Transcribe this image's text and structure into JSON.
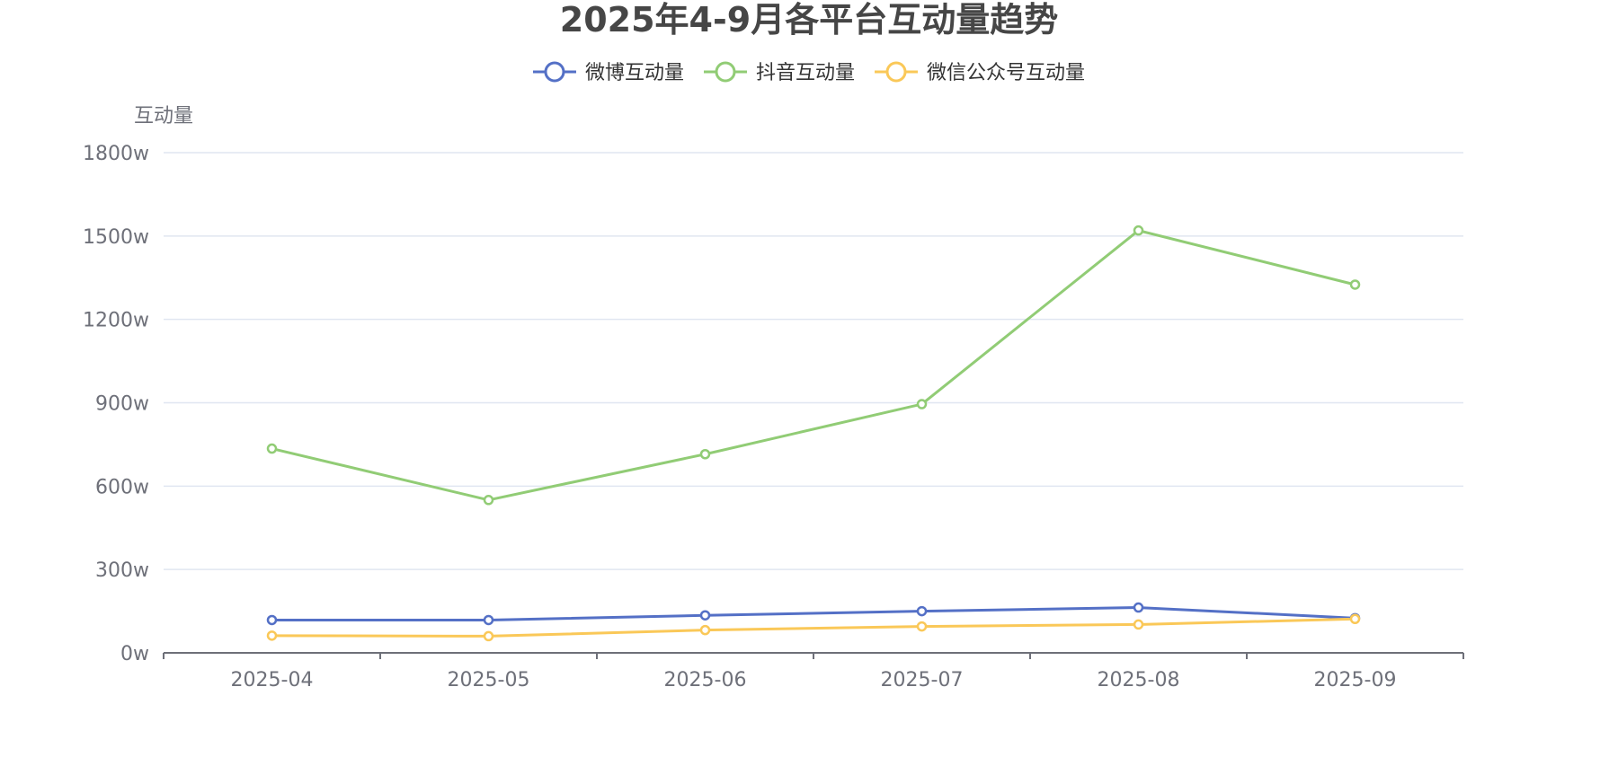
{
  "chart_data": {
    "type": "line",
    "title": "2025年4-9月各平台互动量趋势",
    "ylabel": "互动量",
    "xlabel": "",
    "categories": [
      "2025-04",
      "2025-05",
      "2025-06",
      "2025-07",
      "2025-08",
      "2025-09"
    ],
    "ylim": [
      0,
      1800
    ],
    "yticks": [
      0,
      300,
      600,
      900,
      1200,
      1500,
      1800
    ],
    "ytick_labels": [
      "0w",
      "300w",
      "600w",
      "900w",
      "1200w",
      "1500w",
      "1800w"
    ],
    "grid": true,
    "legend_position": "top-center",
    "series": [
      {
        "name": "微博互动量",
        "color": "#5470c6",
        "values": [
          118,
          118,
          135,
          150,
          163,
          125
        ]
      },
      {
        "name": "抖音互动量",
        "color": "#91cc75",
        "values": [
          735,
          550,
          715,
          895,
          1520,
          1325
        ]
      },
      {
        "name": "微信公众号互动量",
        "color": "#fac858",
        "values": [
          62,
          60,
          82,
          95,
          102,
          122
        ]
      }
    ]
  }
}
